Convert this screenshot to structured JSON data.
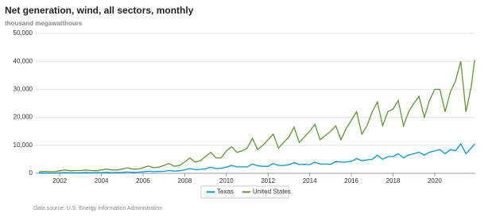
{
  "chart_data": {
    "type": "line",
    "title": "Net generation, wind, all sectors, monthly",
    "subtitle": "thousand megawatthours",
    "source": "Data source: U.S. Energy Information Administration",
    "x": [
      2001,
      2001.25,
      2001.5,
      2001.75,
      2002,
      2002.25,
      2002.5,
      2002.75,
      2003,
      2003.25,
      2003.5,
      2003.75,
      2004,
      2004.25,
      2004.5,
      2004.75,
      2005,
      2005.25,
      2005.5,
      2005.75,
      2006,
      2006.25,
      2006.5,
      2006.75,
      2007,
      2007.25,
      2007.5,
      2007.75,
      2008,
      2008.25,
      2008.5,
      2008.75,
      2009,
      2009.25,
      2009.5,
      2009.75,
      2010,
      2010.25,
      2010.5,
      2010.75,
      2011,
      2011.25,
      2011.5,
      2011.75,
      2012,
      2012.25,
      2012.5,
      2012.75,
      2013,
      2013.25,
      2013.5,
      2013.75,
      2014,
      2014.25,
      2014.5,
      2014.75,
      2015,
      2015.25,
      2015.5,
      2015.75,
      2016,
      2016.25,
      2016.5,
      2016.75,
      2017,
      2017.25,
      2017.5,
      2017.75,
      2018,
      2018.25,
      2018.5,
      2018.75,
      2019,
      2019.25,
      2019.5,
      2019.75,
      2020,
      2020.25,
      2020.5,
      2020.75,
      2021,
      2021.25,
      2021.5,
      2021.75,
      2021.92
    ],
    "series": [
      {
        "name": "Texas",
        "color": "#0096d7",
        "values": [
          100,
          150,
          120,
          120,
          200,
          250,
          200,
          200,
          200,
          300,
          200,
          250,
          250,
          350,
          250,
          300,
          300,
          450,
          350,
          400,
          500,
          700,
          600,
          650,
          700,
          1000,
          800,
          900,
          1200,
          1700,
          1300,
          1400,
          1600,
          2200,
          1700,
          1800,
          2200,
          2800,
          2300,
          2300,
          2300,
          3300,
          2700,
          2500,
          2500,
          3500,
          2800,
          2800,
          3000,
          3800,
          3100,
          3200,
          3100,
          4000,
          3300,
          3300,
          3200,
          4200,
          4000,
          4000,
          4300,
          5300,
          4500,
          4800,
          5000,
          6500,
          5000,
          6000,
          6000,
          7000,
          5500,
          6500,
          7000,
          7500,
          6500,
          7500,
          8000,
          8500,
          7000,
          8500,
          8000,
          10500,
          7000,
          9000,
          10500
        ]
      },
      {
        "name": "United States",
        "color": "#5d9732",
        "values": [
          500,
          700,
          600,
          600,
          900,
          1200,
          900,
          1000,
          1000,
          1200,
          1000,
          900,
          1200,
          1500,
          1200,
          1200,
          1500,
          2000,
          1500,
          1500,
          2000,
          2600,
          2000,
          2200,
          2800,
          3500,
          2500,
          2800,
          4000,
          5500,
          4000,
          4500,
          6000,
          7500,
          5500,
          5500,
          8000,
          9500,
          7500,
          8000,
          9000,
          12500,
          8500,
          10000,
          12000,
          14000,
          9000,
          11000,
          13000,
          16500,
          11000,
          13000,
          15000,
          17500,
          12000,
          13500,
          15000,
          17000,
          12000,
          16000,
          19000,
          22000,
          14000,
          17000,
          22000,
          25500,
          17000,
          22000,
          23000,
          26000,
          17000,
          22000,
          25000,
          27500,
          20000,
          26000,
          30000,
          30000,
          22000,
          29000,
          33000,
          40000,
          22000,
          31000,
          40500
        ]
      }
    ],
    "xlim": [
      2000.85,
      2021.95
    ],
    "xticks": [
      2002,
      2004,
      2006,
      2008,
      2010,
      2012,
      2014,
      2016,
      2018,
      2020
    ],
    "ylim": [
      0,
      50000
    ],
    "yticks": [
      0,
      {
        "value": 10000,
        "label": "10,000"
      },
      {
        "value": 20000,
        "label": "20,000"
      },
      {
        "value": 30000,
        "label": "30,000"
      },
      {
        "value": 40000,
        "label": "40,000"
      },
      {
        "value": 50000,
        "label": "50,000"
      }
    ],
    "grid": true
  }
}
